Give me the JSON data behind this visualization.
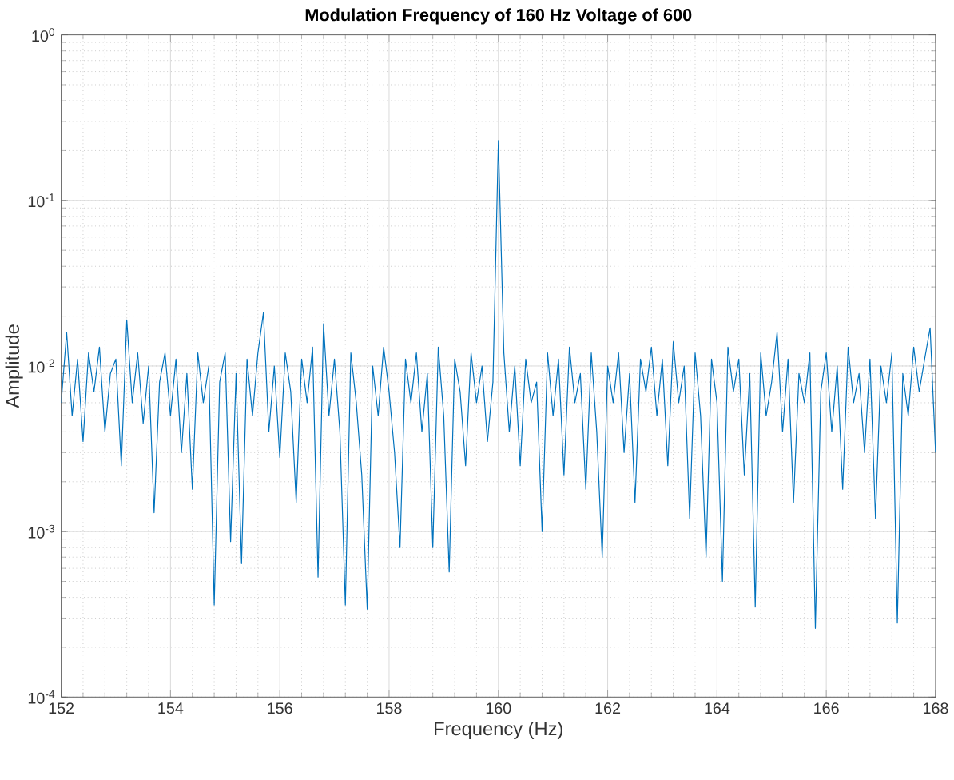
{
  "chart_data": {
    "type": "line",
    "title": "**Modulation Frequency of 160 Hz Voltage of 600**",
    "xlabel": "Frequency (Hz)",
    "ylabel": "Amplitude",
    "log": "y",
    "grid": true,
    "marker": "none",
    "line_style": "solid",
    "xlim": [
      152,
      168
    ],
    "xticks": [
      152,
      154,
      156,
      158,
      160,
      162,
      164,
      166,
      168
    ],
    "ylim": [
      0.0001,
      1
    ],
    "yticks": [
      {
        "value": 0.0001,
        "label": "10$^{-4}$"
      },
      {
        "value": 0.001,
        "label": "10$^{-3}$"
      },
      {
        "value": 0.01,
        "label": "10$^{-2}$"
      },
      {
        "value": 0.1,
        "label": "10$^{-1}$"
      },
      {
        "value": 1,
        "label": "10$^{0}$"
      }
    ],
    "x": [
      152.0,
      152.1,
      152.2,
      152.3,
      152.4,
      152.5,
      152.6,
      152.7,
      152.8,
      152.9,
      153.0,
      153.1,
      153.2,
      153.3,
      153.4,
      153.5,
      153.6,
      153.7,
      153.8,
      153.9,
      154.0,
      154.1,
      154.2,
      154.3,
      154.4,
      154.5,
      154.6,
      154.7,
      154.8,
      154.9,
      155.0,
      155.1,
      155.2,
      155.3,
      155.4,
      155.5,
      155.6,
      155.7,
      155.8,
      155.9,
      156.0,
      156.1,
      156.2,
      156.3,
      156.4,
      156.5,
      156.6,
      156.7,
      156.8,
      156.9,
      157.0,
      157.1,
      157.2,
      157.3,
      157.4,
      157.5,
      157.6,
      157.7,
      157.8,
      157.9,
      158.0,
      158.1,
      158.2,
      158.3,
      158.4,
      158.5,
      158.6,
      158.7,
      158.8,
      158.9,
      159.0,
      159.1,
      159.2,
      159.3,
      159.4,
      159.5,
      159.6,
      159.7,
      159.8,
      159.9,
      160.0,
      160.1,
      160.2,
      160.3,
      160.4,
      160.5,
      160.6,
      160.7,
      160.8,
      160.9,
      161.0,
      161.1,
      161.2,
      161.3,
      161.4,
      161.5,
      161.6,
      161.7,
      161.8,
      161.9,
      162.0,
      162.1,
      162.2,
      162.3,
      162.4,
      162.5,
      162.6,
      162.7,
      162.8,
      162.9,
      163.0,
      163.1,
      163.2,
      163.3,
      163.4,
      163.5,
      163.6,
      163.7,
      163.8,
      163.9,
      164.0,
      164.1,
      164.2,
      164.3,
      164.4,
      164.5,
      164.6,
      164.7,
      164.8,
      164.9,
      165.0,
      165.1,
      165.2,
      165.3,
      165.4,
      165.5,
      165.6,
      165.7,
      165.8,
      165.9,
      166.0,
      166.1,
      166.2,
      166.3,
      166.4,
      166.5,
      166.6,
      166.7,
      166.8,
      166.9,
      167.0,
      167.1,
      167.2,
      167.3,
      167.4,
      167.5,
      167.6,
      167.7,
      167.8,
      167.9,
      168.0
    ],
    "series": [
      {
        "color": "#0072bd",
        "values": [
          0.006,
          0.016,
          0.005,
          0.011,
          0.0035,
          0.012,
          0.007,
          0.013,
          0.004,
          0.009,
          0.011,
          0.0025,
          0.019,
          0.006,
          0.012,
          0.0045,
          0.01,
          0.0013,
          0.008,
          0.012,
          0.005,
          0.011,
          0.003,
          0.009,
          0.0018,
          0.012,
          0.006,
          0.01,
          0.00036,
          0.008,
          0.012,
          0.00087,
          0.009,
          0.00064,
          0.011,
          0.005,
          0.012,
          0.021,
          0.004,
          0.01,
          0.0028,
          0.012,
          0.007,
          0.0015,
          0.011,
          0.006,
          0.013,
          0.00053,
          0.018,
          0.005,
          0.011,
          0.004,
          0.00036,
          0.012,
          0.006,
          0.0022,
          0.00034,
          0.01,
          0.005,
          0.013,
          0.007,
          0.003,
          0.0008,
          0.011,
          0.006,
          0.012,
          0.004,
          0.009,
          0.0008,
          0.013,
          0.005,
          0.00057,
          0.011,
          0.007,
          0.0025,
          0.012,
          0.006,
          0.01,
          0.0035,
          0.008,
          0.23,
          0.012,
          0.004,
          0.01,
          0.0025,
          0.011,
          0.006,
          0.008,
          0.001,
          0.012,
          0.005,
          0.011,
          0.0022,
          0.013,
          0.006,
          0.009,
          0.0018,
          0.012,
          0.004,
          0.0007,
          0.01,
          0.006,
          0.012,
          0.003,
          0.009,
          0.0015,
          0.011,
          0.007,
          0.013,
          0.005,
          0.011,
          0.0025,
          0.014,
          0.006,
          0.01,
          0.0012,
          0.012,
          0.005,
          0.0007,
          0.011,
          0.006,
          0.0005,
          0.013,
          0.007,
          0.011,
          0.0022,
          0.009,
          0.00035,
          0.012,
          0.005,
          0.008,
          0.016,
          0.004,
          0.011,
          0.0015,
          0.009,
          0.006,
          0.012,
          0.00026,
          0.007,
          0.012,
          0.004,
          0.01,
          0.0018,
          0.013,
          0.006,
          0.009,
          0.003,
          0.011,
          0.0012,
          0.01,
          0.006,
          0.012,
          0.00028,
          0.009,
          0.005,
          0.013,
          0.007,
          0.011,
          0.017,
          0.003
        ]
      }
    ]
  }
}
